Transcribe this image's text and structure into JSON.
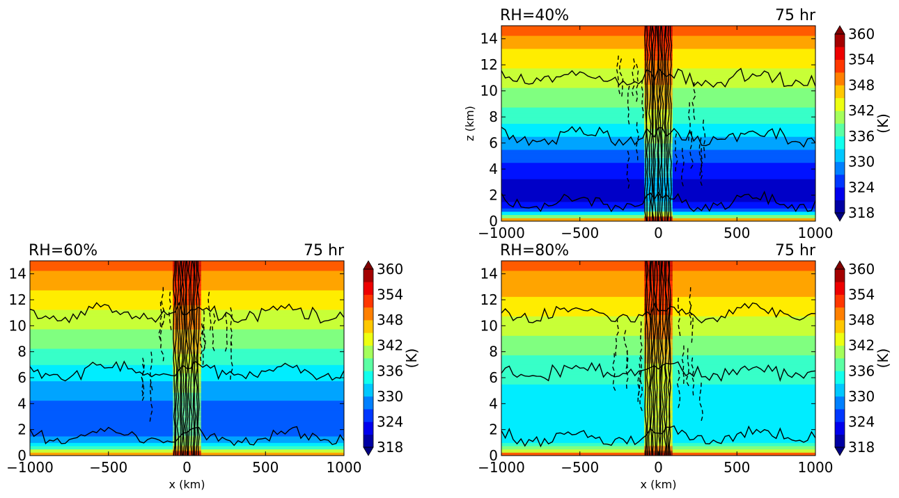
{
  "chart_data": [
    {
      "type": "heatmap",
      "title": "RH=40%",
      "time_label": "75 hr",
      "xlabel": "",
      "ylabel": "z (km)",
      "xlim": [
        -1000,
        1000
      ],
      "ylim": [
        0,
        15
      ],
      "xticks": [
        "−1000",
        "−500",
        "0",
        "500",
        "1000"
      ],
      "yticks": [
        "0",
        "2",
        "4",
        "6",
        "8",
        "10",
        "12",
        "14"
      ],
      "colorbar": {
        "label": "(K)",
        "min": 318,
        "max": 360,
        "ticks": [
          "318",
          "324",
          "330",
          "336",
          "342",
          "348",
          "354",
          "360"
        ],
        "extend": "both",
        "colormap": "jet"
      },
      "field_profile": {
        "z_km": [
          0,
          0.3,
          1,
          2,
          3,
          4,
          6,
          8,
          10,
          12,
          14,
          15
        ],
        "theta_K": [
          354,
          340,
          324,
          321,
          322,
          324,
          330,
          336,
          340,
          344,
          348,
          352
        ]
      },
      "contours": "solid positive, dashed negative"
    },
    {
      "type": "heatmap",
      "title": "RH=60%",
      "time_label": "75 hr",
      "xlabel": "x (km)",
      "ylabel": "",
      "xlim": [
        -1000,
        1000
      ],
      "ylim": [
        0,
        15
      ],
      "xticks": [
        "−1000",
        "−500",
        "0",
        "500",
        "1000"
      ],
      "yticks": [
        "0",
        "2",
        "4",
        "6",
        "8",
        "10",
        "12",
        "14"
      ],
      "colorbar": {
        "label": "(K)",
        "min": 318,
        "max": 360,
        "ticks": [
          "318",
          "324",
          "330",
          "336",
          "342",
          "348",
          "354",
          "360"
        ],
        "extend": "both",
        "colormap": "jet"
      },
      "field_profile": {
        "z_km": [
          0,
          0.3,
          1,
          2,
          3,
          4,
          6,
          8,
          10,
          12,
          14,
          15
        ],
        "theta_K": [
          354,
          342,
          330,
          327,
          327,
          328,
          332,
          337,
          341,
          345,
          349,
          352
        ]
      },
      "contours": "solid positive, dashed negative"
    },
    {
      "type": "heatmap",
      "title": "RH=80%",
      "time_label": "75 hr",
      "xlabel": "x (km)",
      "ylabel": "",
      "xlim": [
        -1000,
        1000
      ],
      "ylim": [
        0,
        15
      ],
      "xticks": [
        "−1000",
        "−500",
        "0",
        "500",
        "1000"
      ],
      "yticks": [
        "0",
        "2",
        "4",
        "6",
        "8",
        "10",
        "12",
        "14"
      ],
      "colorbar": {
        "label": "(K)",
        "min": 318,
        "max": 360,
        "ticks": [
          "318",
          "324",
          "330",
          "336",
          "342",
          "348",
          "354",
          "360"
        ],
        "extend": "both",
        "colormap": "jet"
      },
      "field_profile": {
        "z_km": [
          0,
          0.3,
          1,
          2,
          3,
          4,
          6,
          8,
          10,
          12,
          14,
          15
        ],
        "theta_K": [
          354,
          344,
          334,
          332,
          332,
          333,
          335,
          338,
          342,
          346,
          349,
          352
        ]
      },
      "contours": "solid positive, dashed negative"
    }
  ]
}
